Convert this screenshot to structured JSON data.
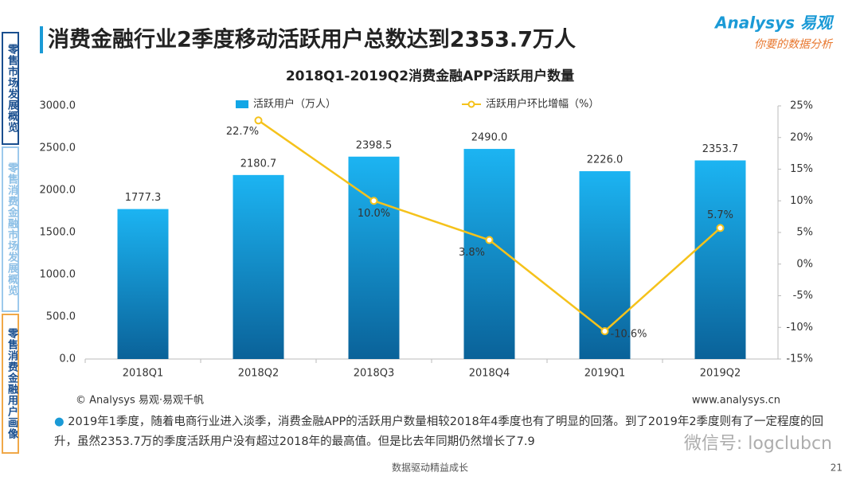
{
  "header": {
    "title": "消费金融行业2季度移动活跃用户总数达到2353.7万人",
    "logo": "Analysys 易观",
    "slogan": "你要的数据分析"
  },
  "sidebar": [
    "零售市场发展概览",
    "零售消费金融市场发展概览",
    "零售消费金融用户画像"
  ],
  "chart_data": {
    "type": "bar",
    "title": "2018Q1-2019Q2消费金融APP活跃用户数量",
    "categories": [
      "2018Q1",
      "2018Q2",
      "2018Q3",
      "2018Q4",
      "2019Q1",
      "2019Q2"
    ],
    "series": [
      {
        "name": "活跃用户（万人）",
        "type": "bar",
        "color": "#12a6e6",
        "values": [
          1777.3,
          2180.7,
          2398.5,
          2490.0,
          2226.0,
          2353.7
        ],
        "value_labels": [
          "1777.3",
          "2180.7",
          "2398.5",
          "2490.0",
          "2226.0",
          "2353.7"
        ]
      },
      {
        "name": "活跃用户环比增幅（%）",
        "type": "line",
        "axis": "y2",
        "color": "#f5c21b",
        "values": [
          null,
          22.7,
          10.0,
          3.8,
          -10.6,
          5.7
        ],
        "value_labels": [
          null,
          "22.7%",
          "10.0%",
          "3.8%",
          "-10.6%",
          "5.7%"
        ]
      }
    ],
    "ylim": [
      0,
      3000
    ],
    "yticks": [
      {
        "value": 0,
        "label": "0.0"
      },
      {
        "value": 500,
        "label": "500.0"
      },
      {
        "value": 1000,
        "label": "1000.0"
      },
      {
        "value": 1500,
        "label": "1500.0"
      },
      {
        "value": 2000,
        "label": "2000.0"
      },
      {
        "value": 2500,
        "label": "2500.0"
      },
      {
        "value": 3000,
        "label": "3000.0"
      }
    ],
    "y2lim": [
      -15,
      25
    ],
    "y2ticks": [
      {
        "value": -15,
        "label": "-15%"
      },
      {
        "value": -10,
        "label": "-10%"
      },
      {
        "value": -5,
        "label": "-5%"
      },
      {
        "value": 0,
        "label": "0%"
      },
      {
        "value": 5,
        "label": "5%"
      },
      {
        "value": 10,
        "label": "10%"
      },
      {
        "value": 15,
        "label": "15%"
      },
      {
        "value": 20,
        "label": "20%"
      },
      {
        "value": 25,
        "label": "25%"
      }
    ],
    "legend": "top",
    "grid": false
  },
  "source": "© Analysys 易观·易观千帆",
  "website": "www.analysys.cn",
  "bullet": "2019年1季度，随着电商行业进入淡季，消费金融APP的活跃用户数量相较2018年4季度也有了明显的回落。到了2019年2季度则有了一定程度的回升，虽然2353.7万的季度活跃用户没有超过2018年的最高值。但是比去年同期仍然增长了7.9",
  "footer": {
    "motto": "数据驱动精益成长",
    "page": "21",
    "watermark": "微信号: logclubcn"
  }
}
